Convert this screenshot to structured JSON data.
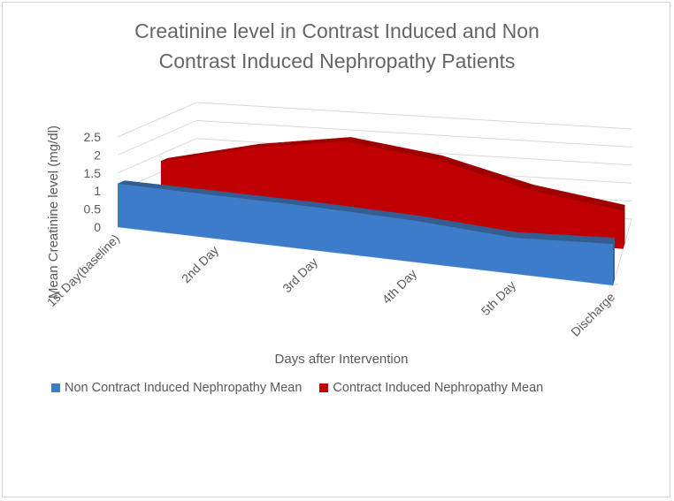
{
  "chart_data": {
    "type": "area",
    "title_lines": [
      "Creatinine level in Contrast Induced and Non",
      "Contrast Induced Nephropathy Patients"
    ],
    "xlabel": "Days after Intervention",
    "ylabel": "Mean Creatinine  level (mg/dl)",
    "categories": [
      "1st Day(baseline)",
      "2nd Day",
      "3rd Day",
      "4th Day",
      "5th Day",
      "Discharge"
    ],
    "yticks": [
      "0",
      "0.5",
      "1",
      "1.5",
      "2",
      "2.5"
    ],
    "ylim": [
      0,
      2.5
    ],
    "grid": true,
    "legend_position": "bottom",
    "series": [
      {
        "name": "Non Contract Induced Nephropathy Mean",
        "color": "#3d7cc9",
        "values": [
          1.2,
          1.2,
          1.2,
          1.15,
          1.0,
          1.15
        ]
      },
      {
        "name": "Contract Induced Nephropathy Mean",
        "color": "#c00000",
        "values": [
          1.3,
          1.9,
          2.3,
          2.0,
          1.4,
          1.05
        ]
      }
    ]
  }
}
